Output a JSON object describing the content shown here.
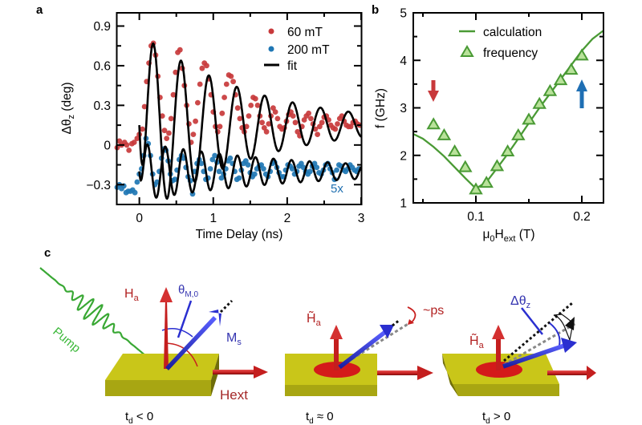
{
  "panels": {
    "a": {
      "label": "a"
    },
    "b": {
      "label": "b"
    },
    "c": {
      "label": "c"
    }
  },
  "chart_data": [
    {
      "id": "a",
      "type": "scatter",
      "title": "",
      "xlabel": "Time Delay (ns)",
      "ylabel": "Δθ",
      "ylabel_sub": "z",
      "ylabel_unit": "(deg)",
      "xlim": [
        -0.3,
        3.0
      ],
      "ylim": [
        -0.45,
        1.0
      ],
      "xticks": [
        0,
        1,
        2,
        3
      ],
      "xtick_labels": [
        "0",
        "1",
        "2",
        "3"
      ],
      "yticks": [
        -0.3,
        0,
        0.3,
        0.6,
        0.9
      ],
      "ytick_labels": [
        "−0.3",
        "0",
        "0.3",
        "0.6",
        "0.9"
      ],
      "grid": false,
      "legend_position": "top-right",
      "annotation": "5x",
      "colors": {
        "red": "#c8393b",
        "blue": "#1f77b4",
        "fit": "#000000"
      },
      "series": [
        {
          "name": "60 mT",
          "kind": "points",
          "color": "#c8393b",
          "fit": {
            "offset": 0.15,
            "amplitude": 0.72,
            "frequency_ghz": 2.65,
            "decay_ns": 1.45,
            "phase": -1.55,
            "rise_ns": 0.05,
            "t0": 0.0
          },
          "points_x": [
            -0.3,
            -0.27,
            -0.24,
            -0.2,
            -0.17,
            -0.14,
            -0.1,
            -0.07,
            -0.03,
            0.0,
            0.04,
            0.07,
            0.1,
            0.13,
            0.16,
            0.19,
            0.22,
            0.25,
            0.28,
            0.31,
            0.34,
            0.37,
            0.4,
            0.43,
            0.46,
            0.49,
            0.52,
            0.55,
            0.58,
            0.61,
            0.64,
            0.67,
            0.7,
            0.73,
            0.76,
            0.79,
            0.82,
            0.85,
            0.88,
            0.91,
            0.94,
            0.97,
            1.0,
            1.03,
            1.06,
            1.09,
            1.12,
            1.15,
            1.18,
            1.21,
            1.24,
            1.27,
            1.3,
            1.33,
            1.36,
            1.39,
            1.42,
            1.45,
            1.48,
            1.51,
            1.54,
            1.57,
            1.6,
            1.63,
            1.66,
            1.69,
            1.72,
            1.75,
            1.78,
            1.81,
            1.84,
            1.87,
            1.9,
            1.93,
            1.96,
            1.99,
            2.02,
            2.05,
            2.08,
            2.11,
            2.14,
            2.17,
            2.2,
            2.23,
            2.26,
            2.29,
            2.32,
            2.35,
            2.38,
            2.41,
            2.44,
            2.47,
            2.5,
            2.53,
            2.56,
            2.59,
            2.62,
            2.65,
            2.68,
            2.71,
            2.74,
            2.77,
            2.8,
            2.83,
            2.86,
            2.89,
            2.92,
            2.95,
            2.98
          ],
          "points_y": [
            -0.02,
            0.03,
            0.0,
            0.02,
            0.0,
            -0.04,
            0.01,
            0.02,
            0.05,
            0.08,
            0.12,
            0.29,
            0.48,
            0.62,
            0.75,
            0.77,
            0.68,
            0.52,
            0.36,
            0.22,
            0.11,
            0.05,
            0.09,
            0.2,
            0.38,
            0.55,
            0.7,
            0.72,
            0.58,
            0.45,
            0.3,
            0.16,
            0.02,
            0.08,
            0.18,
            0.32,
            0.46,
            0.58,
            0.62,
            0.6,
            0.5,
            0.38,
            0.25,
            0.14,
            0.1,
            0.14,
            0.24,
            0.36,
            0.46,
            0.53,
            0.52,
            0.48,
            0.38,
            0.28,
            0.2,
            0.13,
            0.1,
            0.14,
            0.22,
            0.3,
            0.36,
            0.35,
            0.3,
            0.22,
            0.17,
            0.13,
            0.1,
            0.16,
            0.22,
            0.28,
            0.25,
            0.2,
            0.14,
            0.12,
            0.13,
            0.18,
            0.23,
            0.25,
            0.22,
            0.17,
            0.1,
            0.07,
            0.14,
            0.19,
            0.22,
            0.24,
            0.2,
            0.16,
            0.12,
            0.08,
            0.14,
            0.17,
            0.21,
            0.22,
            0.19,
            0.15,
            0.13,
            0.12,
            0.16,
            0.2,
            0.22,
            0.18,
            0.15,
            0.14,
            0.14,
            0.17,
            0.18,
            0.16,
            0.15
          ]
        },
        {
          "name": "200 mT",
          "kind": "points",
          "color": "#1f77b4",
          "fit": {
            "offset": -0.2,
            "amplitude": 0.22,
            "frequency_ghz": 4.1,
            "decay_ns": 2.2,
            "phase": -1.2,
            "rise_ns": 0.03,
            "t0": 0.0
          },
          "points_x": [
            -0.3,
            -0.27,
            -0.24,
            -0.21,
            -0.18,
            -0.15,
            -0.12,
            -0.09,
            -0.06,
            -0.03,
            0.0,
            0.03,
            0.06,
            0.09,
            0.12,
            0.15,
            0.18,
            0.21,
            0.24,
            0.27,
            0.3,
            0.33,
            0.36,
            0.39,
            0.42,
            0.45,
            0.48,
            0.51,
            0.54,
            0.57,
            0.6,
            0.63,
            0.66,
            0.69,
            0.72,
            0.75,
            0.78,
            0.81,
            0.84,
            0.87,
            0.9,
            0.93,
            0.96,
            0.99,
            1.02,
            1.05,
            1.08,
            1.11,
            1.14,
            1.17,
            1.2,
            1.23,
            1.26,
            1.29,
            1.32,
            1.35,
            1.38,
            1.41,
            1.44,
            1.47,
            1.5,
            1.53,
            1.56,
            1.59,
            1.62,
            1.65,
            1.68,
            1.71,
            1.74,
            1.77,
            1.8,
            1.83,
            1.86,
            1.89,
            1.92,
            1.95,
            1.98,
            2.01,
            2.04,
            2.07,
            2.1,
            2.13,
            2.16,
            2.19,
            2.22,
            2.25,
            2.28,
            2.31,
            2.34,
            2.37,
            2.4,
            2.43,
            2.46,
            2.49,
            2.52,
            2.55,
            2.58,
            2.61,
            2.64,
            2.67,
            2.7,
            2.73,
            2.76,
            2.79,
            2.82,
            2.85,
            2.88,
            2.91,
            2.94,
            2.97
          ],
          "points_y": [
            -0.32,
            -0.3,
            -0.33,
            -0.31,
            -0.36,
            -0.35,
            -0.35,
            -0.34,
            -0.36,
            -0.28,
            -0.22,
            -0.18,
            -0.08,
            0.05,
            0.01,
            -0.08,
            -0.22,
            -0.3,
            -0.28,
            -0.2,
            -0.1,
            -0.03,
            -0.04,
            -0.12,
            -0.22,
            -0.27,
            -0.26,
            -0.19,
            -0.11,
            -0.08,
            -0.1,
            -0.17,
            -0.24,
            -0.27,
            -0.37,
            -0.2,
            -0.14,
            -0.11,
            -0.14,
            -0.2,
            -0.26,
            -0.25,
            -0.18,
            -0.11,
            -0.08,
            -0.13,
            -0.2,
            -0.25,
            -0.22,
            -0.18,
            -0.12,
            -0.1,
            -0.14,
            -0.2,
            -0.26,
            -0.25,
            -0.19,
            -0.14,
            -0.12,
            -0.15,
            -0.21,
            -0.24,
            -0.22,
            -0.18,
            -0.16,
            -0.15,
            -0.18,
            -0.22,
            -0.24,
            -0.2,
            -0.14,
            -0.13,
            -0.17,
            -0.21,
            -0.24,
            -0.24,
            -0.19,
            -0.15,
            -0.16,
            -0.18,
            -0.22,
            -0.2,
            -0.16,
            -0.14,
            -0.17,
            -0.2,
            -0.22,
            -0.2,
            -0.16,
            -0.14,
            -0.17,
            -0.21,
            -0.22,
            -0.19,
            -0.15,
            -0.14,
            -0.18,
            -0.21,
            -0.26,
            -0.19,
            -0.15,
            -0.16,
            -0.19,
            -0.2,
            -0.18,
            -0.15,
            -0.17,
            -0.19,
            -0.2,
            -0.18
          ]
        }
      ],
      "legend": [
        {
          "label": "60 mT",
          "kind": "dot",
          "color": "#c8393b"
        },
        {
          "label": "200 mT",
          "kind": "dot",
          "color": "#1f77b4"
        },
        {
          "label": "fit",
          "kind": "line",
          "color": "#000000"
        }
      ]
    },
    {
      "id": "b",
      "type": "scatter",
      "title": "",
      "xlabel": "μ",
      "xlabel_sub1": "0",
      "xlabel_mid": "H",
      "xlabel_sub2": "ext",
      "xlabel_unit": "(T)",
      "ylabel": "f (GHz)",
      "xlim": [
        0.041,
        0.22
      ],
      "ylim": [
        1,
        5
      ],
      "xticks": [
        0.1,
        0.2
      ],
      "xtick_labels": [
        "0.1",
        "0.2"
      ],
      "yticks": [
        1,
        2,
        3,
        4,
        5
      ],
      "ytick_labels": [
        "1",
        "2",
        "3",
        "4",
        "5"
      ],
      "grid": false,
      "legend_position": "top-center",
      "color": "#4a9a35",
      "marker_fill": "#b9e29a",
      "series": [
        {
          "name": "calculation",
          "kind": "line",
          "x": [
            0.041,
            0.05,
            0.06,
            0.07,
            0.08,
            0.09,
            0.1,
            0.11,
            0.12,
            0.13,
            0.14,
            0.15,
            0.16,
            0.17,
            0.18,
            0.19,
            0.2,
            0.21,
            0.22
          ],
          "y": [
            2.45,
            2.35,
            2.18,
            1.98,
            1.75,
            1.52,
            1.3,
            1.44,
            1.73,
            2.03,
            2.35,
            2.68,
            3.0,
            3.3,
            3.6,
            3.9,
            4.2,
            4.45,
            4.62
          ]
        },
        {
          "name": "frequency",
          "kind": "triangles",
          "x": [
            0.06,
            0.07,
            0.08,
            0.09,
            0.1,
            0.11,
            0.12,
            0.13,
            0.14,
            0.15,
            0.16,
            0.17,
            0.18,
            0.19,
            0.2
          ],
          "y": [
            2.65,
            2.42,
            2.08,
            1.75,
            1.28,
            1.42,
            1.77,
            2.08,
            2.42,
            2.75,
            3.08,
            3.35,
            3.58,
            3.8,
            4.1
          ]
        }
      ],
      "legend": [
        {
          "label": "calculation",
          "kind": "line"
        },
        {
          "label": "frequency",
          "kind": "triangle"
        }
      ],
      "markers": [
        {
          "name": "red-arrow",
          "direction": "down",
          "x": 0.06,
          "color": "#c8393b"
        },
        {
          "name": "blue-arrow",
          "direction": "up",
          "x": 0.2,
          "color": "#1f6fb4"
        }
      ]
    }
  ],
  "diagram": {
    "pump_label": "Pump",
    "ha_label": "H",
    "ha_sub": "a",
    "theta_label": "θ",
    "theta_sub": "M,0",
    "ms_label": "M",
    "ms_sub": "s",
    "hext_label": "Hext",
    "ha_tilde_label": "H̃",
    "ps_label": "~ps",
    "dtheta_label": "Δθ",
    "dtheta_sub": "z",
    "states": [
      {
        "t": "t",
        "sub": "d",
        "rel": " < 0"
      },
      {
        "t": "t",
        "sub": "d",
        "rel": " ≈ 0"
      },
      {
        "t": "t",
        "sub": "d",
        "rel": " > 0"
      }
    ],
    "colors": {
      "slab_top": "#c9c619",
      "slab_side": "#9c9a12",
      "red": "#c8201f",
      "blue": "#2a2fd0",
      "green": "#39a834",
      "label_red": "#a52a2a",
      "label_blue": "#3434b0"
    }
  }
}
